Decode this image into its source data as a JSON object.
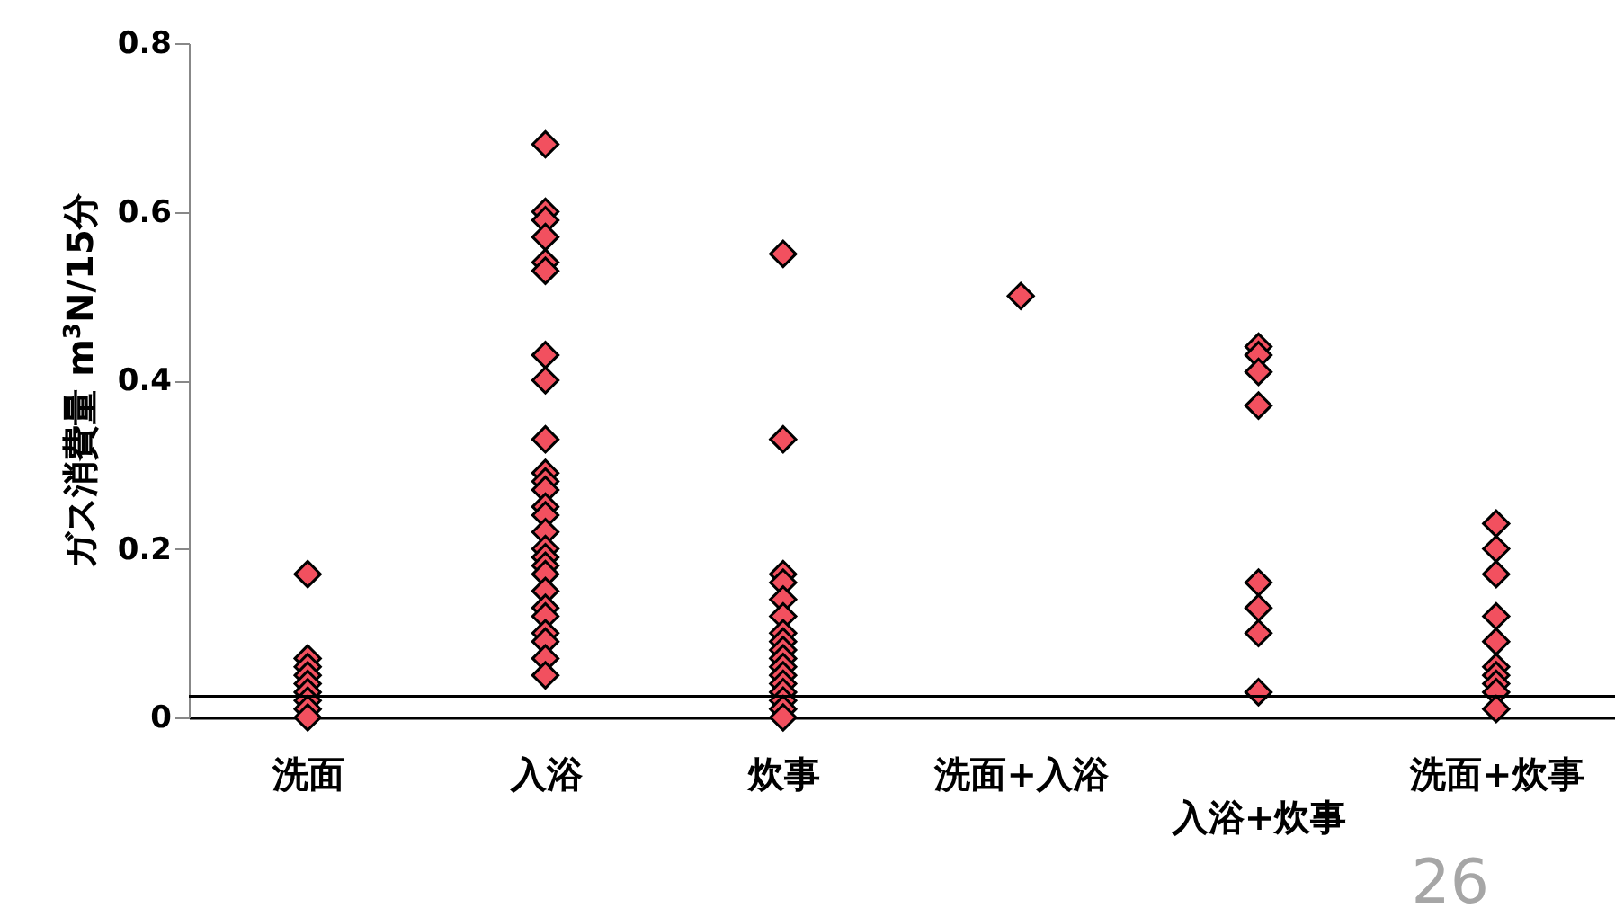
{
  "chart_data": {
    "type": "scatter",
    "ylabel": "ガス消費量 m$^{3}$N/15分",
    "categories": [
      "洗面",
      "入浴",
      "炊事",
      "洗面+入浴",
      "入浴+炊事",
      "洗面+炊事"
    ],
    "series": [
      {
        "color": "#f2505f",
        "x": [
          "洗面",
          "洗面",
          "洗面",
          "洗面",
          "洗面",
          "洗面",
          "洗面",
          "洗面",
          "洗面",
          "入浴",
          "入浴",
          "入浴",
          "入浴",
          "入浴",
          "入浴",
          "入浴",
          "入浴",
          "入浴",
          "入浴",
          "入浴",
          "入浴",
          "入浴",
          "入浴",
          "入浴",
          "入浴",
          "入浴",
          "入浴",
          "入浴",
          "入浴",
          "入浴",
          "入浴",
          "入浴",
          "入浴",
          "入浴",
          "入浴",
          "炊事",
          "炊事",
          "炊事",
          "炊事",
          "炊事",
          "炊事",
          "炊事",
          "炊事",
          "炊事",
          "炊事",
          "炊事",
          "炊事",
          "炊事",
          "炊事",
          "炊事",
          "炊事",
          "炊事",
          "洗面+入浴",
          "入浴+炊事",
          "入浴+炊事",
          "入浴+炊事",
          "入浴+炊事",
          "入浴+炊事",
          "入浴+炊事",
          "入浴+炊事",
          "入浴+炊事",
          "洗面+炊事",
          "洗面+炊事",
          "洗面+炊事",
          "洗面+炊事",
          "洗面+炊事",
          "洗面+炊事",
          "洗面+炊事",
          "洗面+炊事",
          "洗面+炊事",
          "洗面+炊事"
        ],
        "values": [
          0.17,
          0.07,
          0.06,
          0.05,
          0.04,
          0.03,
          0.02,
          0.01,
          0.0,
          0.68,
          0.6,
          0.59,
          0.57,
          0.54,
          0.53,
          0.43,
          0.4,
          0.33,
          0.29,
          0.28,
          0.27,
          0.25,
          0.24,
          0.22,
          0.2,
          0.19,
          0.18,
          0.17,
          0.15,
          0.13,
          0.12,
          0.1,
          0.09,
          0.07,
          0.05,
          0.55,
          0.33,
          0.17,
          0.16,
          0.14,
          0.12,
          0.1,
          0.09,
          0.08,
          0.07,
          0.06,
          0.05,
          0.04,
          0.03,
          0.02,
          0.01,
          0.0,
          0.5,
          0.44,
          0.43,
          0.41,
          0.37,
          0.16,
          0.13,
          0.1,
          0.03,
          0.23,
          0.2,
          0.17,
          0.12,
          0.09,
          0.06,
          0.05,
          0.04,
          0.03,
          0.01
        ]
      }
    ],
    "ylim": [
      0,
      0.8
    ],
    "yticks": [
      0,
      0.2,
      0.4,
      0.6,
      0.8
    ],
    "ref_lines": [
      {
        "axis": "y",
        "value": 0.025,
        "color": "#000000"
      }
    ],
    "marker": "diamond",
    "grid": false,
    "annotations": [
      "26"
    ]
  }
}
